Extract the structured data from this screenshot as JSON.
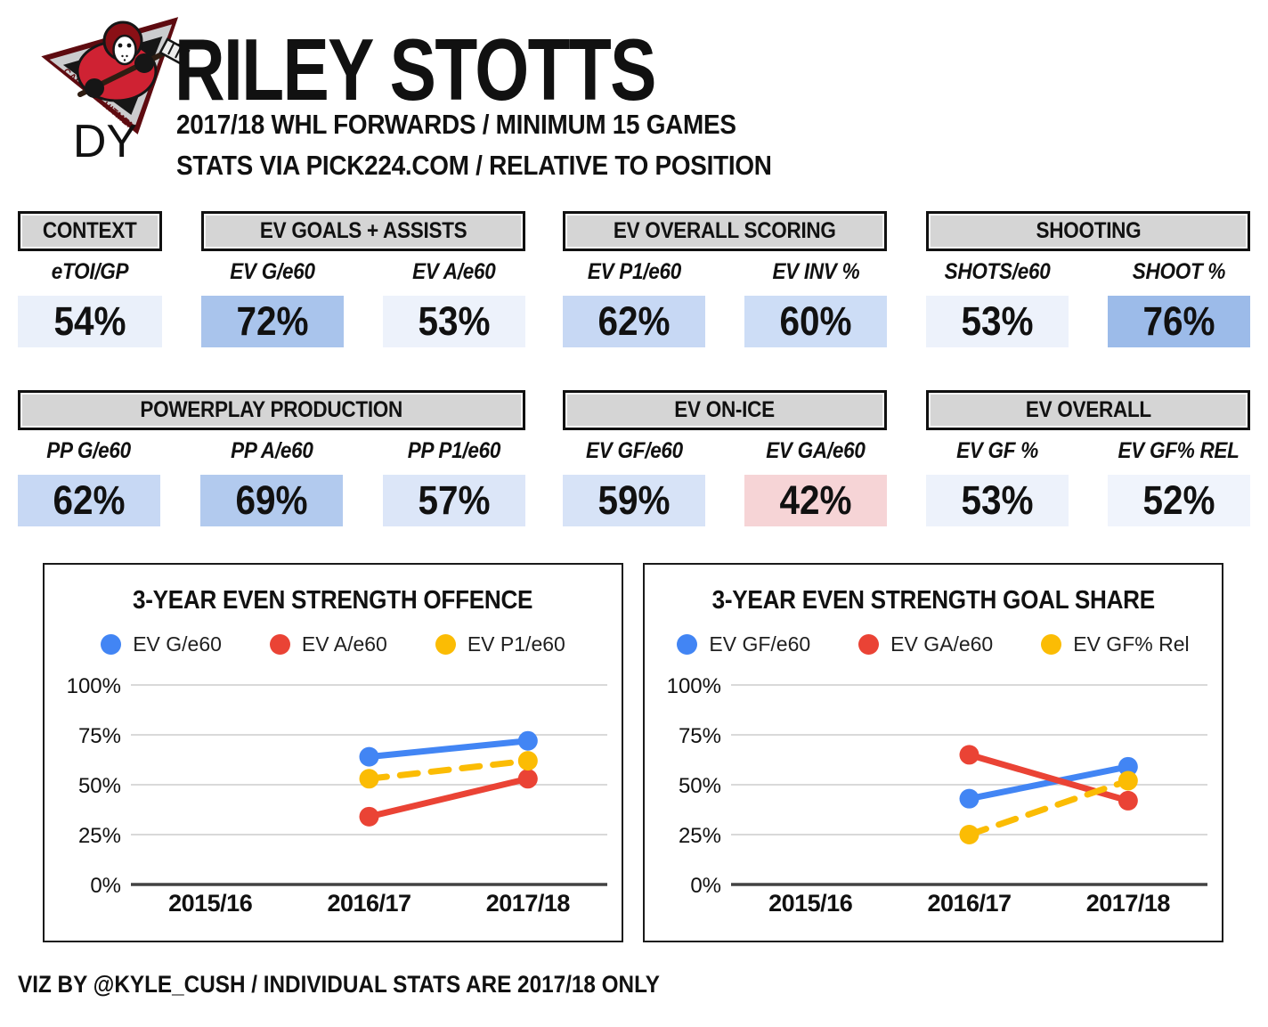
{
  "header": {
    "team": "CALGARY HITMEN",
    "draft_year_label": "DY",
    "player_name": "RILEY STOTTS",
    "subtitle_line1": "2017/18 WHL FORWARDS / MINIMUM 15 GAMES",
    "subtitle_line2": "STATS VIA PICK224.COM / RELATIVE TO POSITION"
  },
  "stat_groups": [
    {
      "title": "CONTEXT",
      "stats": [
        {
          "label": "eTOI/GP",
          "value": "54%",
          "bg": "#eaf0fa"
        }
      ]
    },
    {
      "title": "EV GOALS + ASSISTS",
      "stats": [
        {
          "label": "EV G/e60",
          "value": "72%",
          "bg": "#a9c4ec"
        },
        {
          "label": "EV A/e60",
          "value": "53%",
          "bg": "#edf2fb"
        }
      ]
    },
    {
      "title": "EV OVERALL SCORING",
      "stats": [
        {
          "label": "EV P1/e60",
          "value": "62%",
          "bg": "#c7d8f4"
        },
        {
          "label": "EV INV %",
          "value": "60%",
          "bg": "#cdddf6"
        }
      ]
    },
    {
      "title": "SHOOTING",
      "stats": [
        {
          "label": "SHOTS/e60",
          "value": "53%",
          "bg": "#edf2fb"
        },
        {
          "label": "SHOOT %",
          "value": "76%",
          "bg": "#9cbbe9"
        }
      ]
    },
    {
      "title": "POWERPLAY PRODUCTION",
      "stats": [
        {
          "label": "PP G/e60",
          "value": "62%",
          "bg": "#c7d8f4"
        },
        {
          "label": "PP A/e60",
          "value": "69%",
          "bg": "#b2caee"
        },
        {
          "label": "PP P1/e60",
          "value": "57%",
          "bg": "#dce6f8"
        }
      ]
    },
    {
      "title": "EV ON-ICE",
      "stats": [
        {
          "label": "EV GF/e60",
          "value": "59%",
          "bg": "#d7e3f7"
        },
        {
          "label": "EV GA/e60",
          "value": "42%",
          "bg": "#f6d4d6"
        }
      ]
    },
    {
      "title": "EV OVERALL",
      "stats": [
        {
          "label": "EV GF %",
          "value": "53%",
          "bg": "#edf2fb"
        },
        {
          "label": "EV GF% REL",
          "value": "52%",
          "bg": "#f0f4fc"
        }
      ]
    }
  ],
  "chart_data": [
    {
      "type": "line",
      "title": "3-YEAR EVEN STRENGTH OFFENCE",
      "categories": [
        "2015/16",
        "2016/17",
        "2017/18"
      ],
      "series": [
        {
          "name": "EV G/e60",
          "color": "#4285f4",
          "dashed": false,
          "values": [
            null,
            64,
            72
          ]
        },
        {
          "name": "EV A/e60",
          "color": "#ea4335",
          "dashed": false,
          "values": [
            null,
            34,
            53
          ]
        },
        {
          "name": "EV P1/e60",
          "color": "#fbbc04",
          "dashed": true,
          "values": [
            null,
            53,
            62
          ]
        }
      ],
      "ylim": [
        0,
        100
      ],
      "yticks": [
        0,
        25,
        50,
        75,
        100
      ],
      "ytick_suffix": "%",
      "grid": true,
      "legend_position": "top"
    },
    {
      "type": "line",
      "title": "3-YEAR EVEN STRENGTH GOAL SHARE",
      "categories": [
        "2015/16",
        "2016/17",
        "2017/18"
      ],
      "series": [
        {
          "name": "EV GF/e60",
          "color": "#4285f4",
          "dashed": false,
          "values": [
            null,
            43,
            59
          ]
        },
        {
          "name": "EV GA/e60",
          "color": "#ea4335",
          "dashed": false,
          "values": [
            null,
            65,
            42
          ]
        },
        {
          "name": "EV GF% Rel",
          "color": "#fbbc04",
          "dashed": true,
          "values": [
            null,
            25,
            52
          ]
        }
      ],
      "ylim": [
        0,
        100
      ],
      "yticks": [
        0,
        25,
        50,
        75,
        100
      ],
      "ytick_suffix": "%",
      "grid": true,
      "legend_position": "top"
    }
  ],
  "footer": {
    "credit": "VIZ BY @KYLE_CUSH / INDIVIDUAL STATS ARE 2017/18 ONLY"
  },
  "colors": {
    "blue": "#4285f4",
    "red": "#ea4335",
    "yellow": "#fbbc04",
    "header_fill": "#d5d5d5",
    "grid": "#d9d9d9",
    "axis": "#424242",
    "high_percentile": "#9cbbe9",
    "low_percentile": "#f6d4d6"
  }
}
